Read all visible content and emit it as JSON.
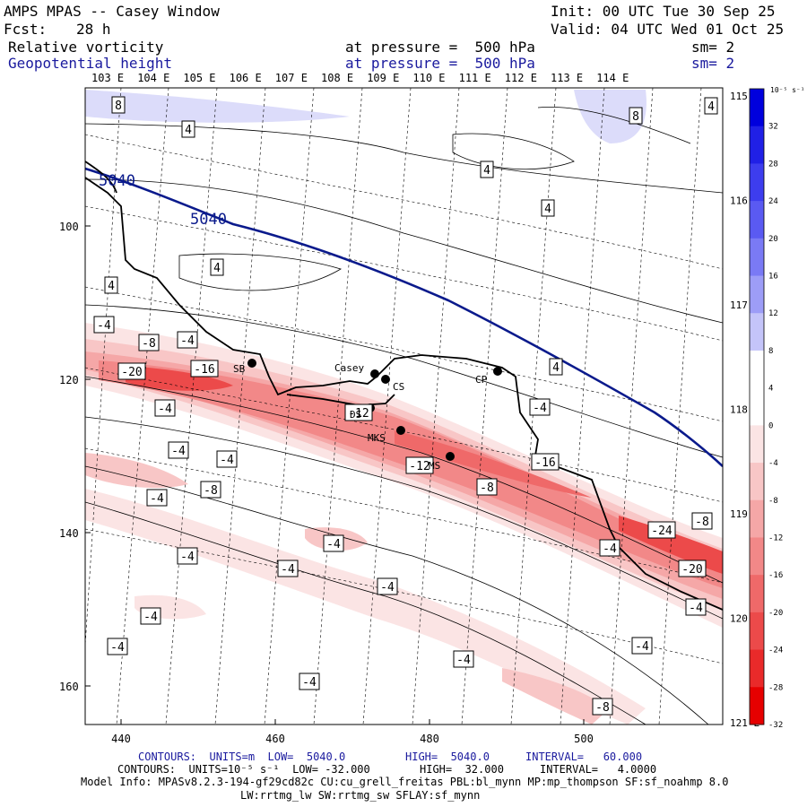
{
  "header": {
    "title": "AMPS MPAS -- Casey Window",
    "init": "Init: 00 UTC Tue 30 Sep 25",
    "fcst_label": "Fcst:",
    "fcst_value": "28 h",
    "valid": "Valid: 04 UTC Wed 01 Oct 25",
    "field1_name": "Relative vorticity",
    "field1_level": "at pressure =  500 hPa",
    "field1_sm": "sm= 2",
    "field2_name": "Geopotential height",
    "field2_level": "at pressure =  500 hPa",
    "field2_sm": "sm= 2"
  },
  "map": {
    "lon_labels": [
      "103 E",
      "104 E",
      "105 E",
      "106 E",
      "107 E",
      "108 E",
      "109 E",
      "110 E",
      "111 E",
      "112 E",
      "113 E",
      "114 E"
    ],
    "lon_labels_right": [
      "115 E",
      "116 E",
      "117 E",
      "118 E",
      "119 E",
      "120 E",
      "121 E"
    ],
    "y_ticks": [
      "100",
      "120",
      "140",
      "160"
    ],
    "x_ticks": [
      "440",
      "460",
      "480",
      "500"
    ],
    "stations": [
      "Casey",
      "CS",
      "SB",
      "CP",
      "MKS",
      "MS",
      "DS"
    ],
    "height_contour_label": "5040",
    "vort_labels": [
      "8",
      "4",
      "4",
      "4",
      "4",
      "4",
      "8",
      "4",
      "4",
      "-4",
      "-8",
      "-4",
      "-20",
      "-16",
      "-4",
      "-12",
      "-4",
      "-4",
      "-4",
      "-8",
      "-16",
      "-12",
      "-8",
      "-4",
      "-24",
      "-8",
      "-4",
      "-20",
      "-4",
      "-4",
      "-4",
      "-4",
      "-4",
      "-4",
      "-4",
      "-4",
      "-4",
      "-8",
      "-4"
    ]
  },
  "colorbar": {
    "units": "10⁻⁵ s⁻¹",
    "labels": [
      "32",
      "28",
      "24",
      "20",
      "16",
      "12",
      "8",
      "4",
      "0",
      "-4",
      "-8",
      "-12",
      "-16",
      "-20",
      "-24",
      "-28",
      "-32"
    ],
    "colors": [
      "#0000dd",
      "#2020e6",
      "#3d3dee",
      "#5a5af2",
      "#7a7af5",
      "#9d9df7",
      "#c4c4f9",
      "#ffffff",
      "#ffffff",
      "#fbe4e4",
      "#f8c6c6",
      "#f5a7a7",
      "#f28888",
      "#ef6969",
      "#ec4a4a",
      "#e92a2a",
      "#e60000"
    ]
  },
  "footer": {
    "line1_contours": "CONTOURS:  UNITS=m  LOW=  5040.0",
    "line1_high": "HIGH=  5040.0",
    "line1_interval": "INTERVAL=   60.000",
    "line2_contours": "CONTOURS:  UNITS=10⁻⁵ s⁻¹  LOW= -32.000",
    "line2_high": "HIGH=  32.000",
    "line2_interval": "INTERVAL=   4.0000",
    "model_info": "Model Info: MPASv8.2.3-194-gf29cd82c CU:cu_grell_freitas PBL:bl_mynn MP:mp_thompson SF:sf_noahmp 8.0",
    "model_info2": "LW:rrtmg_lw SW:rrtmg_sw SFLAY:sf_mynn"
  },
  "colors": {
    "height_line": "#0a1a8c",
    "coast": "#000000",
    "neg_fill": "#e60000",
    "pos_fill": "#9d9df7"
  }
}
